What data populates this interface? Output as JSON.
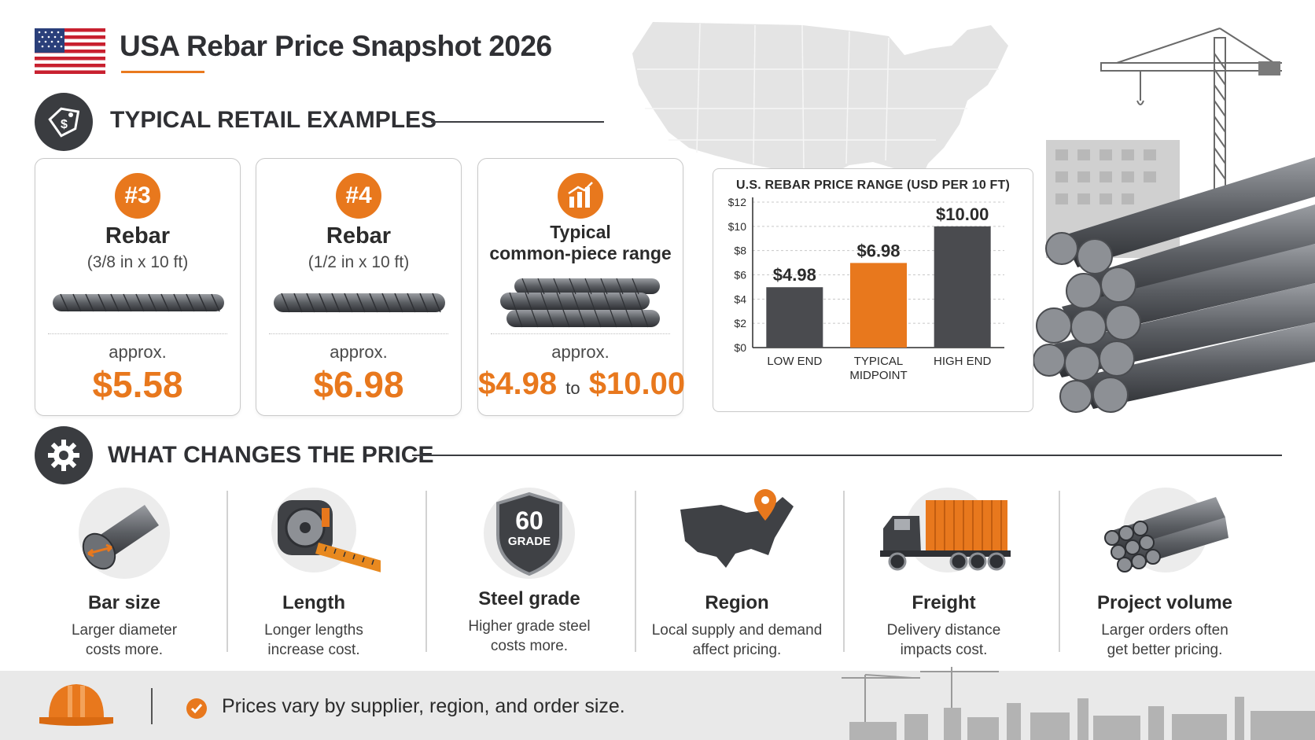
{
  "header": {
    "title": "USA Rebar Price Snapshot 2026",
    "flag_icon": "us-flag-icon"
  },
  "colors": {
    "accent": "#e8781d",
    "dark": "#3a3c40",
    "bar_dark": "#4a4b4f"
  },
  "retail": {
    "section_title": "TYPICAL RETAIL EXAMPLES",
    "cards": [
      {
        "badge": "#3",
        "title": "Rebar",
        "sub": "(3/8 in x 10 ft)",
        "approx": "approx.",
        "price": "$5.58"
      },
      {
        "badge": "#4",
        "title": "Rebar",
        "sub": "(1/2 in x 10 ft)",
        "approx": "approx.",
        "price": "$6.98"
      },
      {
        "icon": "bar-chart-icon",
        "title_line1": "Typical",
        "title_line2": "common-piece range",
        "approx": "approx.",
        "price_low": "$4.98",
        "to": "to",
        "price_high": "$10.00"
      }
    ]
  },
  "chart_data": {
    "type": "bar",
    "title": "U.S. REBAR PRICE RANGE (USD PER 10 FT)",
    "categories": [
      "LOW END",
      "TYPICAL MIDPOINT",
      "HIGH END"
    ],
    "values": [
      4.98,
      6.98,
      10.0
    ],
    "value_labels": [
      "$4.98",
      "$6.98",
      "$10.00"
    ],
    "ylim": [
      0,
      12
    ],
    "yticks": [
      "$0",
      "$2",
      "$4",
      "$6",
      "$8",
      "$10",
      "$12"
    ],
    "bar_colors": [
      "#4a4b4f",
      "#e8781d",
      "#4a4b4f"
    ],
    "grid": true
  },
  "factors": {
    "section_title": "WHAT CHANGES THE PRICE",
    "items": [
      {
        "icon": "rebar-diameter-icon",
        "title": "Bar size",
        "desc1": "Larger diameter",
        "desc2": "costs more."
      },
      {
        "icon": "tape-measure-icon",
        "title": "Length",
        "desc1": "Longer lengths",
        "desc2": "increase cost."
      },
      {
        "icon": "grade-shield-icon",
        "shield_num": "60",
        "shield_text": "GRADE",
        "title": "Steel grade",
        "desc1": "Higher grade steel",
        "desc2": "costs more."
      },
      {
        "icon": "usa-map-pin-icon",
        "title": "Region",
        "desc1": "Local supply and demand",
        "desc2": "affect pricing."
      },
      {
        "icon": "truck-icon",
        "title": "Freight",
        "desc1": "Delivery distance",
        "desc2": "impacts cost."
      },
      {
        "icon": "rebar-bundle-icon",
        "title": "Project volume",
        "desc1": "Larger orders often",
        "desc2": "get better pricing."
      }
    ]
  },
  "footer": {
    "icon": "hard-hat-icon",
    "check_icon": "check-circle-icon",
    "note": "Prices vary by supplier, region, and order size."
  }
}
